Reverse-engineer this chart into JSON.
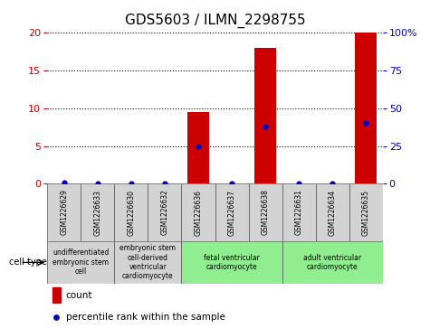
{
  "title": "GDS5603 / ILMN_2298755",
  "samples": [
    "GSM1226629",
    "GSM1226633",
    "GSM1226630",
    "GSM1226632",
    "GSM1226636",
    "GSM1226637",
    "GSM1226638",
    "GSM1226631",
    "GSM1226634",
    "GSM1226635"
  ],
  "count_values": [
    0,
    0,
    0,
    0,
    9.5,
    0,
    18,
    0,
    0,
    20
  ],
  "percentile_values": [
    1,
    0,
    0,
    0,
    25,
    0,
    38,
    0,
    0,
    40
  ],
  "ylim_left": [
    0,
    20
  ],
  "ylim_right": [
    0,
    100
  ],
  "yticks_left": [
    0,
    5,
    10,
    15,
    20
  ],
  "ytick_labels_right": [
    "0",
    "25",
    "50",
    "75",
    "100%"
  ],
  "bar_color": "#cc0000",
  "dot_color": "#0000cc",
  "cell_type_groups": [
    {
      "label": "undifferentiated\nembryonic stem\ncell",
      "start": 0,
      "end": 2,
      "color": "#d3d3d3"
    },
    {
      "label": "embryonic stem\ncell-derived\nventricular\ncardiomyocyte",
      "start": 2,
      "end": 4,
      "color": "#d3d3d3"
    },
    {
      "label": "fetal ventricular\ncardiomyocyte",
      "start": 4,
      "end": 7,
      "color": "#90ee90"
    },
    {
      "label": "adult ventricular\ncardiomyocyte",
      "start": 7,
      "end": 10,
      "color": "#90ee90"
    }
  ],
  "legend_count_label": "count",
  "legend_percentile_label": "percentile rank within the sample",
  "cell_type_label": "cell type",
  "sample_bg_color": "#d3d3d3",
  "title_fontsize": 11,
  "tick_fontsize": 8,
  "sample_fontsize": 5.5,
  "celltype_fontsize": 5.5,
  "legend_fontsize": 7.5
}
